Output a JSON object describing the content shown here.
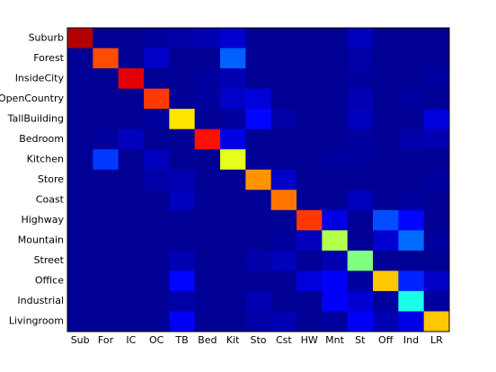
{
  "chart_data": {
    "type": "heatmap",
    "row_categories": [
      "Suburb",
      "Forest",
      "InsideCity",
      "OpenCountry",
      "TallBuilding",
      "Bedroom",
      "Kitchen",
      "Store",
      "Coast",
      "Highway",
      "Mountain",
      "Street",
      "Office",
      "Industrial",
      "Livingroom"
    ],
    "col_categories": [
      "Sub",
      "For",
      "IC",
      "OC",
      "TB",
      "Bed",
      "Kit",
      "Sto",
      "Cst",
      "HW",
      "Mnt",
      "St",
      "Off",
      "Ind",
      "LR"
    ],
    "colormap": "jet",
    "zlim": [
      0,
      1
    ],
    "values": [
      [
        0.95,
        0.02,
        0.02,
        0.03,
        0.04,
        0.05,
        0.08,
        0.02,
        0.02,
        0.02,
        0.02,
        0.06,
        0.02,
        0.02,
        0.02
      ],
      [
        0.02,
        0.8,
        0.02,
        0.07,
        0.02,
        0.02,
        0.22,
        0.02,
        0.02,
        0.02,
        0.02,
        0.04,
        0.02,
        0.02,
        0.02
      ],
      [
        0.02,
        0.02,
        0.9,
        0.02,
        0.02,
        0.03,
        0.05,
        0.02,
        0.02,
        0.02,
        0.02,
        0.03,
        0.02,
        0.02,
        0.03
      ],
      [
        0.02,
        0.02,
        0.02,
        0.82,
        0.02,
        0.03,
        0.07,
        0.09,
        0.02,
        0.02,
        0.02,
        0.05,
        0.02,
        0.03,
        0.02
      ],
      [
        0.02,
        0.02,
        0.02,
        0.03,
        0.65,
        0.02,
        0.03,
        0.13,
        0.04,
        0.02,
        0.02,
        0.06,
        0.02,
        0.02,
        0.09
      ],
      [
        0.02,
        0.03,
        0.06,
        0.02,
        0.02,
        0.86,
        0.1,
        0.02,
        0.02,
        0.02,
        0.02,
        0.03,
        0.02,
        0.04,
        0.05
      ],
      [
        0.02,
        0.18,
        0.02,
        0.06,
        0.02,
        0.02,
        0.6,
        0.02,
        0.02,
        0.02,
        0.03,
        0.03,
        0.02,
        0.02,
        0.02
      ],
      [
        0.02,
        0.02,
        0.02,
        0.04,
        0.05,
        0.02,
        0.02,
        0.73,
        0.07,
        0.02,
        0.02,
        0.02,
        0.02,
        0.02,
        0.03
      ],
      [
        0.02,
        0.02,
        0.02,
        0.02,
        0.06,
        0.02,
        0.02,
        0.02,
        0.76,
        0.02,
        0.02,
        0.06,
        0.02,
        0.03,
        0.02
      ],
      [
        0.02,
        0.02,
        0.02,
        0.02,
        0.02,
        0.02,
        0.02,
        0.02,
        0.02,
        0.82,
        0.1,
        0.02,
        0.2,
        0.13,
        0.02
      ],
      [
        0.02,
        0.02,
        0.02,
        0.02,
        0.02,
        0.02,
        0.02,
        0.02,
        0.03,
        0.06,
        0.55,
        0.02,
        0.08,
        0.23,
        0.03
      ],
      [
        0.02,
        0.02,
        0.02,
        0.02,
        0.05,
        0.02,
        0.02,
        0.04,
        0.06,
        0.02,
        0.05,
        0.5,
        0.02,
        0.02,
        0.02
      ],
      [
        0.02,
        0.02,
        0.02,
        0.02,
        0.13,
        0.02,
        0.02,
        0.02,
        0.02,
        0.09,
        0.12,
        0.03,
        0.68,
        0.16,
        0.07
      ],
      [
        0.02,
        0.02,
        0.02,
        0.02,
        0.04,
        0.02,
        0.02,
        0.05,
        0.02,
        0.02,
        0.12,
        0.08,
        0.03,
        0.4,
        0.03
      ],
      [
        0.02,
        0.02,
        0.02,
        0.02,
        0.12,
        0.02,
        0.02,
        0.04,
        0.05,
        0.02,
        0.03,
        0.12,
        0.05,
        0.1,
        0.68
      ]
    ]
  }
}
